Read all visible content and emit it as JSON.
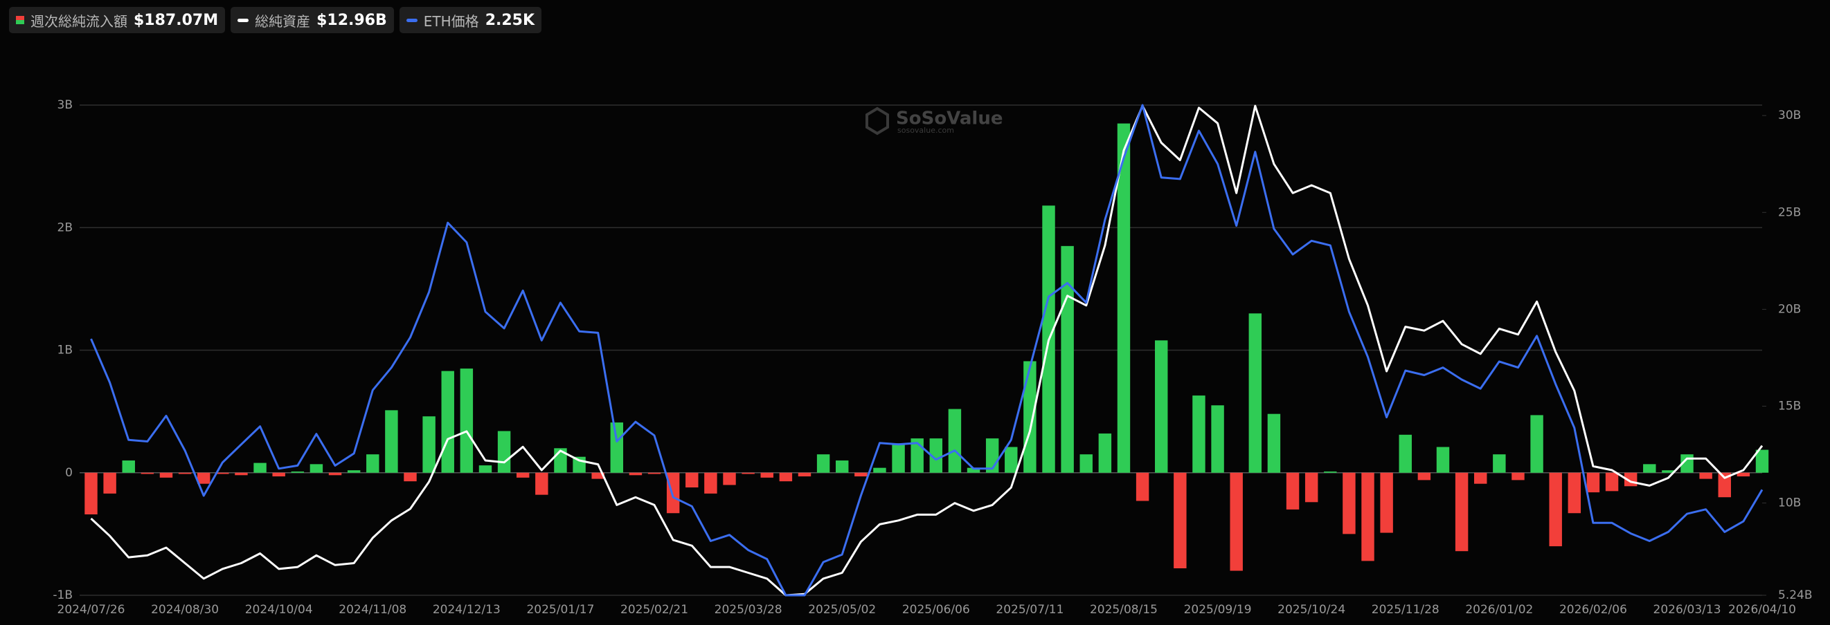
{
  "chart_data": {
    "type": "bar-line",
    "watermark": "SoSoValue",
    "watermark_sub": "sosovalue.com",
    "categories": [
      "2024/07/26",
      null,
      null,
      null,
      null,
      "2024/08/30",
      null,
      null,
      null,
      null,
      "2024/10/04",
      null,
      null,
      null,
      null,
      "2024/11/08",
      null,
      null,
      null,
      null,
      "2024/12/13",
      null,
      null,
      null,
      null,
      "2025/01/17",
      null,
      null,
      null,
      null,
      "2025/02/21",
      null,
      null,
      null,
      null,
      "2025/03/28",
      null,
      null,
      null,
      null,
      "2025/05/02",
      null,
      null,
      null,
      null,
      "2025/06/06",
      null,
      null,
      null,
      null,
      "2025/07/11",
      null,
      null,
      null,
      null,
      "2025/08/15",
      null,
      null,
      null,
      null,
      "2025/09/19",
      null,
      null,
      null,
      null,
      "2025/10/24",
      null,
      null,
      null,
      null,
      "2025/11/28",
      null,
      null,
      null,
      null,
      "2026/01/02",
      null,
      null,
      null,
      null,
      "2026/02/06",
      null,
      null,
      null,
      null,
      "2026/03/13",
      null,
      null,
      null,
      "2026/04/10"
    ],
    "series": [
      {
        "name": "週次総純流入額",
        "type": "bar",
        "axis": "y",
        "color": "#2fcc55",
        "negative_color": "#f23f3a",
        "latest_label": "$187.07M",
        "values": [
          -0.34,
          -0.17,
          0.1,
          -0.01,
          -0.04,
          -0.01,
          -0.09,
          -0.01,
          -0.02,
          0.08,
          -0.03,
          0.01,
          0.07,
          -0.02,
          0.02,
          0.15,
          0.51,
          -0.07,
          0.46,
          0.83,
          0.85,
          0.06,
          0.34,
          -0.04,
          -0.18,
          0.2,
          0.13,
          -0.05,
          0.41,
          -0.02,
          -0.01,
          -0.33,
          -0.12,
          -0.17,
          -0.1,
          -0.01,
          -0.04,
          -0.07,
          -0.03,
          0.15,
          0.1,
          -0.03,
          0.04,
          0.24,
          0.28,
          0.28,
          0.52,
          0.04,
          0.28,
          0.21,
          0.91,
          2.18,
          1.85,
          0.15,
          0.32,
          2.85,
          -0.23,
          1.08,
          -0.78,
          0.63,
          0.55,
          -0.8,
          1.3,
          0.48,
          -0.3,
          -0.24,
          0.01,
          -0.5,
          -0.72,
          -0.49,
          0.31,
          -0.06,
          0.21,
          -0.64,
          -0.09,
          0.15,
          -0.06,
          0.47,
          -0.6,
          -0.33,
          -0.16,
          -0.15,
          -0.11,
          0.07,
          0.02,
          0.15,
          -0.05,
          -0.2,
          -0.03,
          0.18707
        ]
      },
      {
        "name": "総純資産",
        "type": "line",
        "axis": "y2",
        "color": "#ffffff",
        "latest_label": "$12.96B",
        "values": [
          9.2,
          8.3,
          7.2,
          7.3,
          7.7,
          6.9,
          6.1,
          6.6,
          6.9,
          7.4,
          6.6,
          6.7,
          7.3,
          6.8,
          6.9,
          8.2,
          9.1,
          9.7,
          11.1,
          13.3,
          13.7,
          12.2,
          12.1,
          12.9,
          11.7,
          12.7,
          12.2,
          12.0,
          9.9,
          10.3,
          9.9,
          8.1,
          7.8,
          6.7,
          6.7,
          6.4,
          6.1,
          5.24,
          5.3,
          6.1,
          6.4,
          8.0,
          8.9,
          9.1,
          9.4,
          9.4,
          10.0,
          9.6,
          9.9,
          10.8,
          13.7,
          18.4,
          20.7,
          20.2,
          23.3,
          28.2,
          30.5,
          28.6,
          27.7,
          30.4,
          29.6,
          26.0,
          30.5,
          27.5,
          26.0,
          26.4,
          26.0,
          22.6,
          20.2,
          16.8,
          19.1,
          18.9,
          19.4,
          18.2,
          17.7,
          19.0,
          18.7,
          20.4,
          17.8,
          15.8,
          11.9,
          11.7,
          11.1,
          10.9,
          11.3,
          12.3,
          12.3,
          11.3,
          11.7,
          12.96
        ]
      },
      {
        "name": "ETH価格",
        "type": "line",
        "axis": "y3",
        "color": "#3b6ef0",
        "latest_label": "2.25K",
        "values": [
          3.25,
          2.96,
          2.58,
          2.57,
          2.74,
          2.51,
          2.21,
          2.43,
          2.55,
          2.67,
          2.39,
          2.41,
          2.62,
          2.41,
          2.49,
          2.91,
          3.06,
          3.26,
          3.56,
          4.02,
          3.89,
          3.43,
          3.32,
          3.57,
          3.24,
          3.49,
          3.3,
          3.29,
          2.57,
          2.7,
          2.61,
          2.2,
          2.14,
          1.91,
          1.95,
          1.85,
          1.79,
          1.55,
          1.55,
          1.77,
          1.82,
          2.21,
          2.56,
          2.55,
          2.56,
          2.45,
          2.51,
          2.39,
          2.39,
          2.58,
          3.06,
          3.53,
          3.62,
          3.49,
          4.04,
          4.45,
          4.8,
          4.32,
          4.31,
          4.63,
          4.41,
          4.0,
          4.49,
          3.98,
          3.81,
          3.9,
          3.87,
          3.43,
          3.13,
          2.73,
          3.04,
          3.01,
          3.06,
          2.98,
          2.92,
          3.1,
          3.06,
          3.27,
          2.95,
          2.66,
          2.03,
          2.03,
          1.96,
          1.91,
          1.97,
          2.09,
          2.12,
          1.97,
          2.04,
          2.25
        ]
      }
    ],
    "ylim": [
      -1,
      3
    ],
    "yticks": [
      {
        "value": -1,
        "label": "-1B"
      },
      0,
      {
        "value": 1,
        "label": "1B"
      },
      {
        "value": 2,
        "label": "2B"
      },
      {
        "value": 3,
        "label": "3B"
      }
    ],
    "y2lim": [
      5.24,
      30.54
    ],
    "y2ticks": [
      {
        "value": 5.24,
        "label": "5.24B"
      },
      {
        "value": 10,
        "label": "10B"
      },
      {
        "value": 15,
        "label": "15B"
      },
      {
        "value": 20,
        "label": "20B"
      },
      {
        "value": 25,
        "label": "25B"
      },
      {
        "value": 30,
        "label": "30B"
      }
    ],
    "y3lim": [
      1.55,
      4.8
    ],
    "grid": true
  }
}
